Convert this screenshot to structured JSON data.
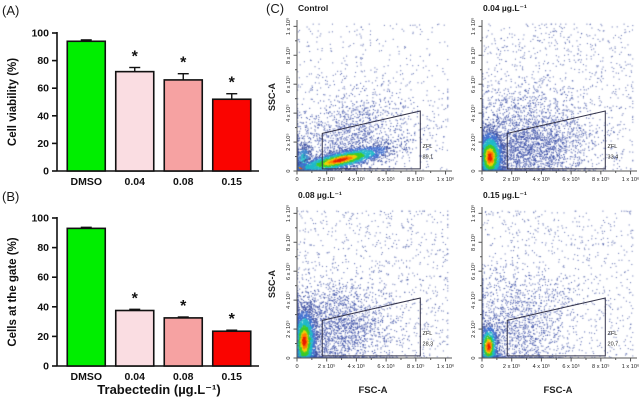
{
  "panels": {
    "a_label": "(A)",
    "b_label": "(B)",
    "c_label": "(C)"
  },
  "chart_data": [
    {
      "id": "cell-viability",
      "type": "bar",
      "panel": "A",
      "title": "",
      "ylabel": "Cell viability (%)",
      "xlabel": "",
      "categories": [
        "DMSO",
        "0.04",
        "0.08",
        "0.15"
      ],
      "values": [
        94,
        72,
        66,
        52
      ],
      "errors": [
        1,
        3,
        4.5,
        4
      ],
      "significance": [
        "",
        "*",
        "*",
        "*"
      ],
      "bar_colors": [
        "#00ee00",
        "#fadde2",
        "#f6a2a2",
        "#fa0400"
      ],
      "ylim": [
        0,
        100
      ],
      "yticks": [
        0,
        20,
        40,
        60,
        80,
        100
      ],
      "grid": false
    },
    {
      "id": "cells-at-gate",
      "type": "bar",
      "panel": "B",
      "title": "",
      "ylabel": "Cells at the gate (%)",
      "xlabel": "Trabectedin (µg.L⁻¹)",
      "categories": [
        "DMSO",
        "0.04",
        "0.08",
        "0.15"
      ],
      "values": [
        93,
        37.5,
        32.5,
        23.5
      ],
      "errors": [
        0.7,
        0.8,
        0.6,
        0.7
      ],
      "significance": [
        "",
        "*",
        "*",
        "*"
      ],
      "bar_colors": [
        "#00ee00",
        "#fadde2",
        "#f6a2a2",
        "#fa0400"
      ],
      "ylim": [
        0,
        100
      ],
      "yticks": [
        0,
        20,
        40,
        60,
        80,
        100
      ],
      "grid": false
    },
    {
      "id": "flow-control",
      "type": "scatter",
      "panel": "C",
      "title": "Control",
      "xlabel": "FSC-A",
      "ylabel": "SSC-A",
      "show_xlabel": false,
      "show_ylabel": true,
      "xlim": [
        0,
        1030000
      ],
      "ylim": [
        0,
        1030000
      ],
      "ticks": [
        0,
        200000,
        400000,
        600000,
        800000,
        1000000
      ],
      "tick_labels": [
        "0",
        "2 x 10⁵",
        "4 x 10⁵",
        "6 x 10⁵",
        "8 x 10⁵",
        "1 x 10⁶"
      ],
      "gate": {
        "label": "ZFL",
        "value": "89,1",
        "polygon": [
          [
            170000,
            15000
          ],
          [
            830000,
            15000
          ],
          [
            830000,
            415000
          ],
          [
            170000,
            260000
          ]
        ]
      },
      "density_model": {
        "uniform_n": 500,
        "clusters": [
          {
            "cx": 360000,
            "cy": 240000,
            "sx": 240000,
            "sy": 150000,
            "rot": 14,
            "n": 1400,
            "palette": "blue"
          },
          {
            "cx": 45000,
            "cy": 85000,
            "sx": 30000,
            "sy": 55000,
            "rot": 0,
            "n": 450,
            "palette": "cool"
          },
          {
            "cx": 30000,
            "cy": 20000,
            "sx": 30000,
            "sy": 15000,
            "rot": 0,
            "n": 220,
            "palette": "heat"
          },
          {
            "cx": 290000,
            "cy": 75000,
            "sx": 160000,
            "sy": 30000,
            "rot": 13,
            "n": 2500,
            "palette": "heat"
          }
        ]
      }
    },
    {
      "id": "flow-004",
      "type": "scatter",
      "panel": "C",
      "title": "0.04 µg.L⁻¹",
      "xlabel": "FSC-A",
      "ylabel": "SSC-A",
      "show_xlabel": false,
      "show_ylabel": false,
      "xlim": [
        0,
        1030000
      ],
      "ylim": [
        0,
        1030000
      ],
      "ticks": [
        0,
        200000,
        400000,
        600000,
        800000,
        1000000
      ],
      "tick_labels": [
        "0",
        "2 x 10⁵",
        "4 x 10⁵",
        "6 x 10⁵",
        "8 x 10⁵",
        "1 x 10⁶"
      ],
      "gate": {
        "label": "ZFL",
        "value": "33,4",
        "polygon": [
          [
            170000,
            15000
          ],
          [
            830000,
            15000
          ],
          [
            830000,
            415000
          ],
          [
            170000,
            260000
          ]
        ]
      },
      "density_model": {
        "uniform_n": 900,
        "clusters": [
          {
            "cx": 270000,
            "cy": 210000,
            "sx": 210000,
            "sy": 175000,
            "rot": 10,
            "n": 2100,
            "palette": "blue"
          },
          {
            "cx": 340000,
            "cy": 130000,
            "sx": 220000,
            "sy": 80000,
            "rot": 10,
            "n": 700,
            "palette": "blue"
          },
          {
            "cx": 40000,
            "cy": 12000,
            "sx": 60000,
            "sy": 10000,
            "rot": 0,
            "n": 260,
            "palette": "heat"
          },
          {
            "cx": 55000,
            "cy": 95000,
            "sx": 43000,
            "sy": 85000,
            "rot": 0,
            "n": 2300,
            "palette": "heat"
          }
        ]
      }
    },
    {
      "id": "flow-008",
      "type": "scatter",
      "panel": "C",
      "title": "0.08 µg.L⁻¹",
      "xlabel": "FSC-A",
      "ylabel": "SSC-A",
      "show_xlabel": true,
      "show_ylabel": true,
      "xlim": [
        0,
        1030000
      ],
      "ylim": [
        0,
        1030000
      ],
      "ticks": [
        0,
        200000,
        400000,
        600000,
        800000,
        1000000
      ],
      "tick_labels": [
        "0",
        "2 x 10⁵",
        "4 x 10⁵",
        "6 x 10⁵",
        "8 x 10⁵",
        "1 x 10⁶"
      ],
      "gate": {
        "label": "ZFL",
        "value": "28,3",
        "polygon": [
          [
            170000,
            15000
          ],
          [
            830000,
            15000
          ],
          [
            830000,
            415000
          ],
          [
            170000,
            260000
          ]
        ]
      },
      "density_model": {
        "uniform_n": 900,
        "clusters": [
          {
            "cx": 240000,
            "cy": 200000,
            "sx": 210000,
            "sy": 170000,
            "rot": 10,
            "n": 2200,
            "palette": "blue"
          },
          {
            "cx": 40000,
            "cy": 15000,
            "sx": 50000,
            "sy": 12000,
            "rot": 0,
            "n": 260,
            "palette": "heat"
          },
          {
            "cx": 50000,
            "cy": 115000,
            "sx": 38000,
            "sy": 105000,
            "rot": 0,
            "n": 2300,
            "palette": "heat"
          }
        ]
      }
    },
    {
      "id": "flow-015",
      "type": "scatter",
      "panel": "C",
      "title": "0.15 µg.L⁻¹",
      "xlabel": "FSC-A",
      "ylabel": "SSC-A",
      "show_xlabel": true,
      "show_ylabel": false,
      "xlim": [
        0,
        1030000
      ],
      "ylim": [
        0,
        1030000
      ],
      "ticks": [
        0,
        200000,
        400000,
        600000,
        800000,
        1000000
      ],
      "tick_labels": [
        "0",
        "2 x 10⁵",
        "4 x 10⁵",
        "6 x 10⁵",
        "8 x 10⁵",
        "1 x 10⁶"
      ],
      "gate": {
        "label": "ZFL",
        "value": "20,7",
        "polygon": [
          [
            170000,
            15000
          ],
          [
            830000,
            15000
          ],
          [
            830000,
            415000
          ],
          [
            170000,
            260000
          ]
        ]
      },
      "density_model": {
        "uniform_n": 800,
        "clusters": [
          {
            "cx": 220000,
            "cy": 220000,
            "sx": 200000,
            "sy": 190000,
            "rot": 10,
            "n": 1400,
            "palette": "blue"
          },
          {
            "cx": 40000,
            "cy": 15000,
            "sx": 45000,
            "sy": 12000,
            "rot": 0,
            "n": 200,
            "palette": "heat"
          },
          {
            "cx": 45000,
            "cy": 80000,
            "sx": 30000,
            "sy": 70000,
            "rot": 0,
            "n": 950,
            "palette": "heat"
          }
        ]
      }
    }
  ]
}
